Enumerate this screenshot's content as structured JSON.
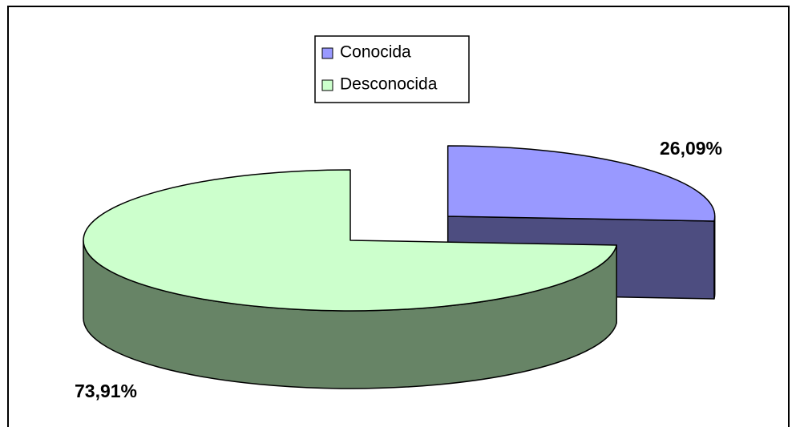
{
  "chart_data": {
    "type": "pie3d",
    "categories": [
      "Conocida",
      "Desconocida"
    ],
    "values": [
      26.09,
      73.91
    ],
    "value_labels": [
      "26,09%",
      "73,91%"
    ],
    "colors": [
      "#9999ff",
      "#ccffcc"
    ],
    "side_colors": [
      "#4d4d80",
      "#678466"
    ],
    "legend": "top"
  }
}
